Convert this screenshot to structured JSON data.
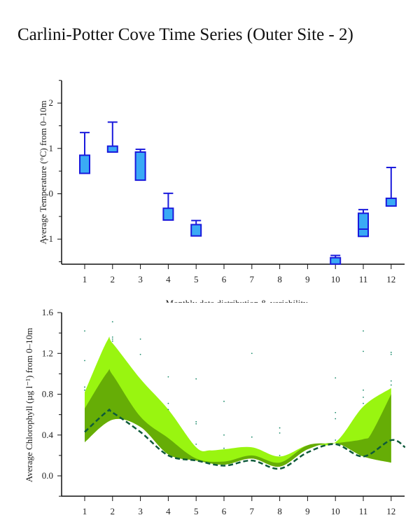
{
  "title": "Carlini-Potter Cove Time Series (Outer Site - 2)",
  "chart_data": [
    {
      "type": "box",
      "ylabel": "Average Temperature (°C) from 0–10m",
      "xlabel": "Monthly data distribution & variability",
      "ylim": [
        -1.56,
        2.5
      ],
      "x_ticks": [
        "1",
        "2",
        "3",
        "4",
        "5",
        "6",
        "7",
        "8",
        "9",
        "10",
        "11",
        "12"
      ],
      "y_ticks": [
        "2",
        "1",
        "0",
        "-1"
      ],
      "colors": {
        "box_fill": "#3aaaf5",
        "box_stroke": "#1a1adc"
      },
      "boxes": [
        {
          "month": 1,
          "q1": 0.45,
          "q3": 0.85,
          "whisker_high": 1.35
        },
        {
          "month": 2,
          "q1": 0.92,
          "q3": 1.05,
          "whisker_high": 1.58
        },
        {
          "month": 3,
          "q1": 0.3,
          "q3": 0.92,
          "whisker_high": 0.98
        },
        {
          "month": 4,
          "q1": -0.58,
          "q3": -0.32,
          "whisker_high": 0.01
        },
        {
          "month": 5,
          "q1": -0.93,
          "q3": -0.68,
          "whisker_high": -0.59
        },
        {
          "month": 10,
          "q1": -1.55,
          "q3": -1.41,
          "whisker_high": -1.36
        },
        {
          "month": 11,
          "q1": -0.94,
          "q3": -0.43,
          "median": -0.78,
          "whisker_high": -0.35
        },
        {
          "month": 12,
          "q1": -0.27,
          "q3": -0.1,
          "whisker_high": 0.58
        }
      ]
    },
    {
      "type": "area",
      "ylabel": "Average Chlorophyll (µg l⁻¹) from 0–10m",
      "ylim": [
        -0.2,
        1.6
      ],
      "x_ticks": [
        "1",
        "2",
        "3",
        "4",
        "5",
        "6",
        "7",
        "8",
        "9",
        "10",
        "11",
        "12"
      ],
      "y_ticks": [
        "1.6",
        "1.2",
        "0.8",
        "0.4",
        "0.0"
      ],
      "colors": {
        "outer_band": "#99f510",
        "inner_band": "#66ad06",
        "mean_line": "#0e5a3a",
        "points": "#1a8a6a"
      },
      "outer_upper": [
        [
          1,
          0.82
        ],
        [
          1.8,
          1.32
        ],
        [
          2,
          1.3
        ],
        [
          3,
          0.95
        ],
        [
          4,
          0.65
        ],
        [
          5,
          0.28
        ],
        [
          5.5,
          0.25
        ],
        [
          6,
          0.26
        ],
        [
          7,
          0.28
        ],
        [
          8,
          0.19
        ],
        [
          9,
          0.3
        ],
        [
          10,
          0.33
        ],
        [
          11,
          0.68
        ],
        [
          12,
          0.86
        ]
      ],
      "inner_upper": [
        [
          1,
          0.66
        ],
        [
          1.8,
          1.01
        ],
        [
          2,
          0.99
        ],
        [
          3,
          0.58
        ],
        [
          4,
          0.37
        ],
        [
          5,
          0.17
        ],
        [
          6,
          0.14
        ],
        [
          7,
          0.2
        ],
        [
          8,
          0.13
        ],
        [
          9,
          0.3
        ],
        [
          10,
          0.32
        ],
        [
          11,
          0.36
        ],
        [
          11.3,
          0.42
        ],
        [
          12,
          0.8
        ]
      ],
      "lower": [
        [
          1,
          0.33
        ],
        [
          2,
          0.55
        ],
        [
          3,
          0.48
        ],
        [
          4,
          0.21
        ],
        [
          5,
          0.15
        ],
        [
          6,
          0.11
        ],
        [
          7,
          0.17
        ],
        [
          8,
          0.09
        ],
        [
          9,
          0.26
        ],
        [
          10,
          0.32
        ],
        [
          11,
          0.19
        ],
        [
          12,
          0.13
        ]
      ],
      "mean": [
        [
          1,
          0.43
        ],
        [
          1.8,
          0.63
        ],
        [
          2,
          0.62
        ],
        [
          3,
          0.43
        ],
        [
          4,
          0.2
        ],
        [
          5,
          0.15
        ],
        [
          6,
          0.1
        ],
        [
          7,
          0.15
        ],
        [
          8,
          0.07
        ],
        [
          9,
          0.23
        ],
        [
          10,
          0.31
        ],
        [
          11,
          0.19
        ],
        [
          12,
          0.35
        ],
        [
          12.5,
          0.28
        ]
      ],
      "points": [
        [
          1,
          1.42
        ],
        [
          1,
          1.13
        ],
        [
          1,
          0.87
        ],
        [
          1,
          0.84
        ],
        [
          2,
          1.51
        ],
        [
          2,
          1.36
        ],
        [
          2,
          1.34
        ],
        [
          2,
          1.32
        ],
        [
          3,
          1.34
        ],
        [
          3,
          1.19
        ],
        [
          4,
          0.97
        ],
        [
          4,
          0.71
        ],
        [
          4,
          0.65
        ],
        [
          5,
          0.95
        ],
        [
          5,
          0.53
        ],
        [
          5,
          0.51
        ],
        [
          5,
          0.31
        ],
        [
          6,
          0.73
        ],
        [
          6,
          0.4
        ],
        [
          6,
          0.27
        ],
        [
          7,
          1.2
        ],
        [
          7,
          0.38
        ],
        [
          8,
          0.47
        ],
        [
          8,
          0.42
        ],
        [
          8,
          0.2
        ],
        [
          10,
          0.96
        ],
        [
          10,
          0.62
        ],
        [
          10,
          0.56
        ],
        [
          10,
          0.35
        ],
        [
          11,
          1.42
        ],
        [
          11,
          1.22
        ],
        [
          11,
          0.84
        ],
        [
          11,
          0.77
        ],
        [
          11,
          0.71
        ],
        [
          12,
          1.21
        ],
        [
          12,
          1.19
        ],
        [
          12,
          0.93
        ],
        [
          12,
          0.89
        ]
      ]
    }
  ]
}
